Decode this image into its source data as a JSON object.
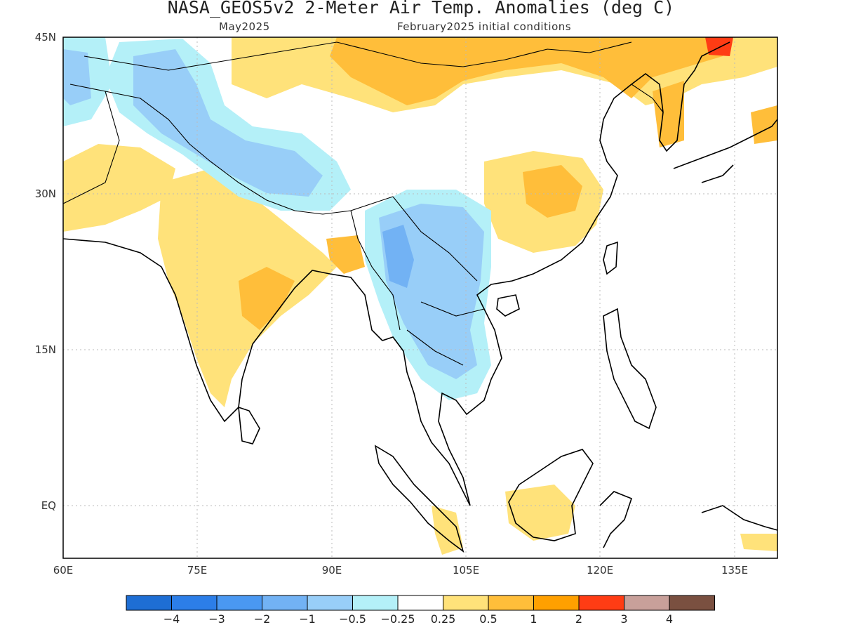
{
  "header": {
    "title": "NASA_GEOS5v2 2-Meter Air Temp. Anomalies (deg C)",
    "forecast_month": "May2025",
    "initial_conditions": "February2025 initial conditions"
  },
  "map": {
    "lat_labels": [
      "45N",
      "30N",
      "15N",
      "EQ"
    ],
    "lon_labels": [
      "60E",
      "75E",
      "90E",
      "105E",
      "120E",
      "135E"
    ],
    "extent": {
      "lon_min": 60,
      "lon_max": 140,
      "lat_min": -5,
      "lat_max": 45
    },
    "grid": "dotted"
  },
  "colorbar": {
    "colors": [
      "#1e6ed4",
      "#2c7ee8",
      "#4a98f2",
      "#72b2f4",
      "#98cef8",
      "#b4f0f8",
      "#ffffff",
      "#ffe27a",
      "#ffbe3a",
      "#ffa000",
      "#ff3c14",
      "#c8a09a",
      "#7a5040"
    ],
    "labels": [
      "-4",
      "-3",
      "-2",
      "-1",
      "-0.5",
      "-0.25",
      "0.25",
      "0.5",
      "1",
      "2",
      "3",
      "4"
    ]
  }
}
